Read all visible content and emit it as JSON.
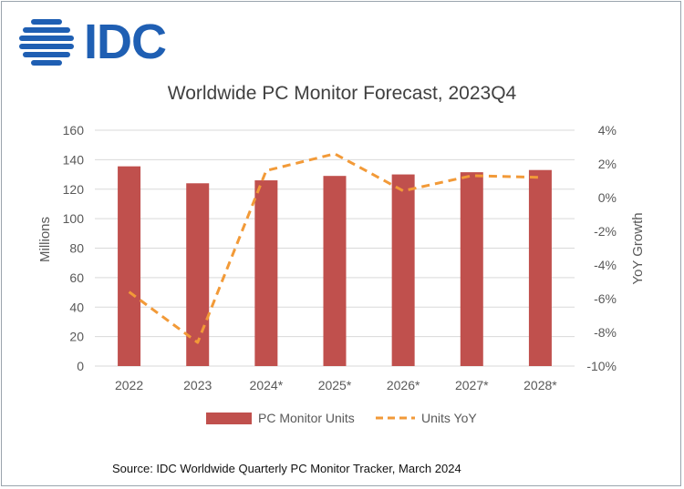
{
  "logo": {
    "text": "IDC",
    "color": "#1f5fb3"
  },
  "source": "Source:  IDC Worldwide Quarterly PC Monitor Tracker, March 2024",
  "colors": {
    "bar": "#c0504d",
    "line": "#f29a38",
    "grid": "#d9d9d9",
    "text": "#595959"
  },
  "chart_data": {
    "type": "bar",
    "title": "Worldwide PC Monitor Forecast, 2023Q4",
    "categories": [
      "2022",
      "2023",
      "2024*",
      "2025*",
      "2026*",
      "2027*",
      "2028*"
    ],
    "series": [
      {
        "name": "PC Monitor Units",
        "type": "bar",
        "axis": "left",
        "values": [
          135.5,
          124,
          126,
          129,
          130,
          131.5,
          133
        ]
      },
      {
        "name": "Units YoY",
        "type": "line",
        "axis": "right",
        "style": "dashed",
        "values": [
          -5.6,
          -8.6,
          1.6,
          2.6,
          0.4,
          1.3,
          1.2
        ]
      }
    ],
    "ylabel": "Millions",
    "ylim": [
      0,
      160
    ],
    "yticks": [
      0,
      20,
      40,
      60,
      80,
      100,
      120,
      140,
      160
    ],
    "y2label": "YoY Growth",
    "y2lim": [
      -10,
      4
    ],
    "y2ticks": [
      "4%",
      "2%",
      "0%",
      "-2%",
      "-4%",
      "-6%",
      "-8%",
      "-10%"
    ],
    "y2tick_values": [
      4,
      2,
      0,
      -2,
      -4,
      -6,
      -8,
      -10
    ],
    "grid": true,
    "legend": "bottom-center"
  }
}
